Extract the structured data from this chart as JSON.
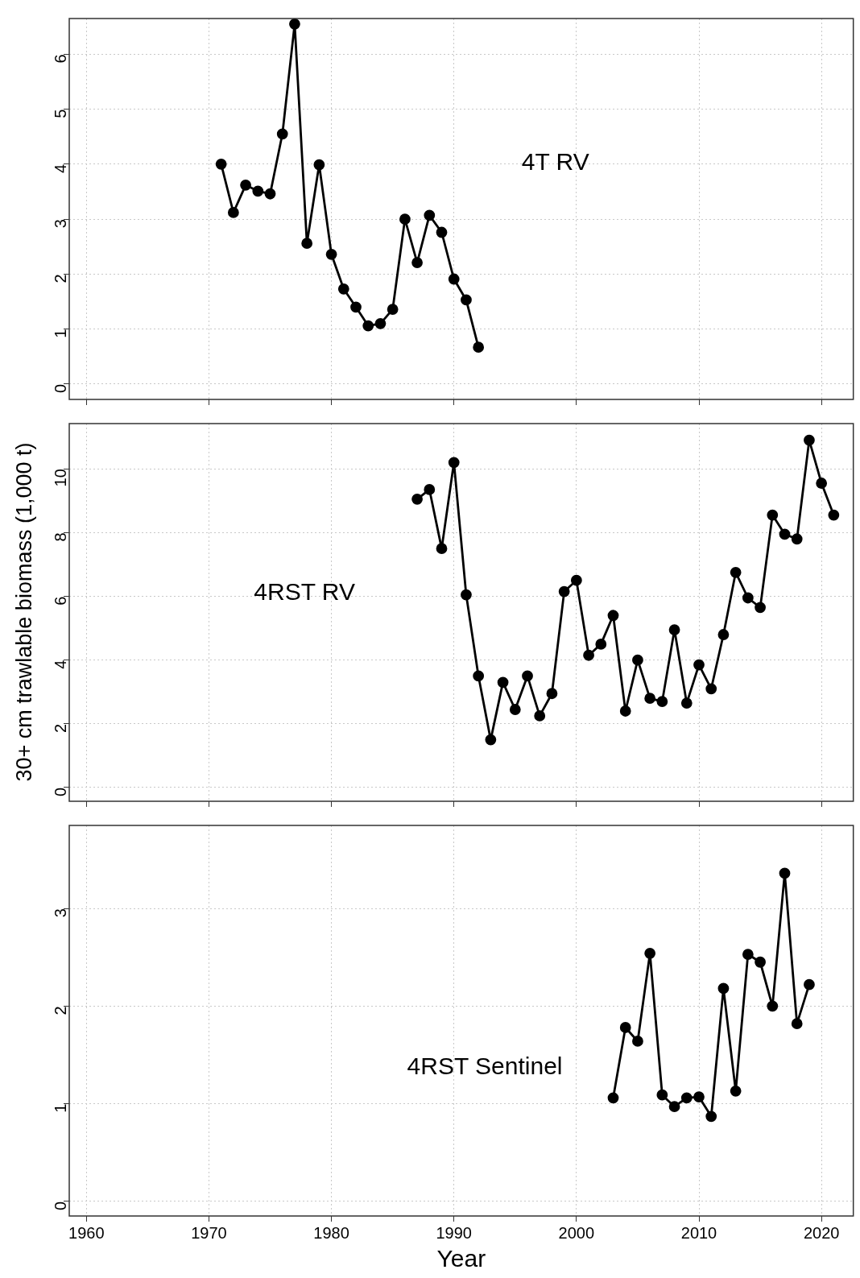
{
  "chart_data": [
    {
      "type": "line",
      "x": [
        1971,
        1972,
        1973,
        1974,
        1975,
        1976,
        1977,
        1978,
        1979,
        1980,
        1981,
        1982,
        1983,
        1984,
        1985,
        1986,
        1987,
        1988,
        1989,
        1990,
        1991,
        1992
      ],
      "series": [
        {
          "name": "4T RV",
          "color": "#000000",
          "values": [
            4.0,
            3.12,
            3.62,
            3.51,
            3.46,
            4.55,
            6.55,
            2.56,
            3.99,
            2.36,
            1.73,
            1.4,
            1.06,
            1.1,
            1.36,
            3.0,
            2.21,
            3.07,
            2.76,
            1.91,
            1.53,
            0.67
          ]
        }
      ],
      "xlim": [
        1958.6,
        2022.6
      ],
      "xticks": [
        1960,
        1970,
        1980,
        1990,
        2000,
        2010,
        2020
      ],
      "ylim": [
        -0.28,
        6.65
      ],
      "yticks": [
        0,
        1,
        2,
        3,
        4,
        5,
        6
      ],
      "tick_labels": "y",
      "grid": true,
      "marker": "circle",
      "line_style": "solid"
    },
    {
      "type": "line",
      "x": [
        1987,
        1988,
        1989,
        1990,
        1991,
        1992,
        1993,
        1994,
        1995,
        1996,
        1997,
        1998,
        1999,
        2000,
        2001,
        2002,
        2003,
        2004,
        2005,
        2006,
        2007,
        2008,
        2009,
        2010,
        2011,
        2012,
        2013,
        2014,
        2015,
        2016,
        2017,
        2018,
        2019,
        2020,
        2021
      ],
      "series": [
        {
          "name": "4RST RV",
          "color": "#000000",
          "values": [
            9.05,
            9.35,
            7.5,
            10.2,
            6.05,
            3.5,
            1.5,
            3.3,
            2.45,
            3.5,
            2.25,
            2.95,
            6.15,
            6.5,
            4.15,
            4.5,
            5.4,
            2.4,
            4.0,
            2.8,
            2.7,
            4.95,
            2.65,
            3.85,
            3.1,
            4.8,
            6.75,
            5.95,
            5.65,
            8.55,
            7.95,
            7.8,
            10.9,
            9.55,
            8.55
          ]
        }
      ],
      "xlim": [
        1958.6,
        2022.6
      ],
      "xticks": [
        1960,
        1970,
        1980,
        1990,
        2000,
        2010,
        2020
      ],
      "ylim": [
        -0.43,
        11.42
      ],
      "yticks": [
        0,
        2,
        4,
        6,
        8,
        10
      ],
      "ylabel": "30+ cm trawlable biomass (1,000 t)",
      "tick_labels": "y",
      "grid": true,
      "marker": "circle",
      "line_style": "solid"
    },
    {
      "type": "line",
      "x": [
        2003,
        2004,
        2005,
        2006,
        2007,
        2008,
        2009,
        2010,
        2011,
        2012,
        2013,
        2014,
        2015,
        2016,
        2017,
        2018,
        2019
      ],
      "series": [
        {
          "name": "4RST Sentinel",
          "color": "#000000",
          "values": [
            1.06,
            1.78,
            1.64,
            2.54,
            1.09,
            0.97,
            1.06,
            1.07,
            0.87,
            2.18,
            1.13,
            2.53,
            2.45,
            2.0,
            3.36,
            1.82,
            2.22
          ]
        }
      ],
      "xlim": [
        1958.6,
        2022.6
      ],
      "xticks": [
        1960,
        1970,
        1980,
        1990,
        2000,
        2010,
        2020
      ],
      "ylim": [
        -0.15,
        3.85
      ],
      "yticks": [
        0,
        1,
        2,
        3
      ],
      "xlabel": "Year",
      "grid": true,
      "marker": "circle",
      "line_style": "solid"
    }
  ]
}
